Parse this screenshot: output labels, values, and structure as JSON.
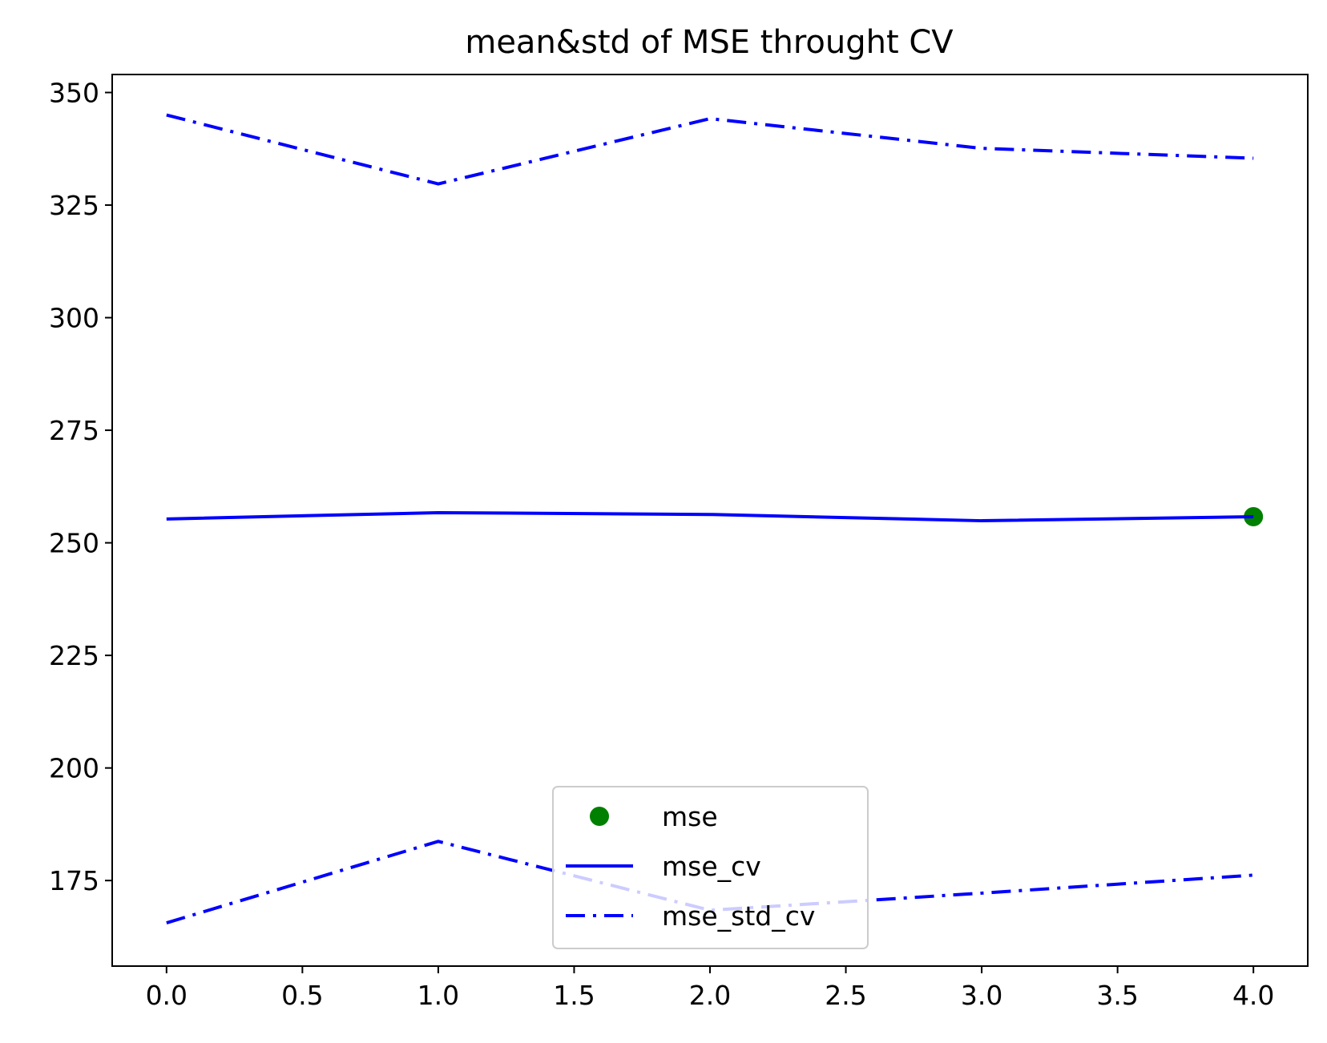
{
  "chart_data": {
    "type": "line",
    "title": "mean&std of MSE throught CV",
    "xlabel": "",
    "ylabel": "",
    "x": [
      0,
      1,
      2,
      3,
      4
    ],
    "xlim": [
      -0.2,
      4.2
    ],
    "ylim": [
      156,
      354
    ],
    "xticks": [
      0.0,
      0.5,
      1.0,
      1.5,
      2.0,
      2.5,
      3.0,
      3.5,
      4.0
    ],
    "xtick_labels": [
      "0.0",
      "0.5",
      "1.0",
      "1.5",
      "2.0",
      "2.5",
      "3.0",
      "3.5",
      "4.0"
    ],
    "yticks": [
      175,
      200,
      225,
      250,
      275,
      300,
      325,
      350
    ],
    "ytick_labels": [
      "175",
      "200",
      "225",
      "250",
      "275",
      "300",
      "325",
      "350"
    ],
    "grid": false,
    "legend_position": "lower center",
    "series": [
      {
        "name": "mse",
        "style": "marker",
        "color": "#008000",
        "points": [
          {
            "x": 4,
            "y": 255.8
          }
        ]
      },
      {
        "name": "mse_cv",
        "style": "solid",
        "color": "#0000ff",
        "values": [
          255.3,
          256.7,
          256.3,
          254.9,
          255.8
        ]
      },
      {
        "name": "mse_std_cv",
        "style": "dashdot",
        "color": "#0000ff",
        "values": [
          345.0,
          329.7,
          344.2,
          337.6,
          335.4
        ]
      },
      {
        "name": "",
        "style": "dashdot",
        "color": "#0000ff",
        "values": [
          165.6,
          183.7,
          168.4,
          172.2,
          176.2
        ]
      }
    ],
    "legend": [
      {
        "label": "mse",
        "style": "marker",
        "color": "#008000"
      },
      {
        "label": "mse_cv",
        "style": "solid",
        "color": "#0000ff"
      },
      {
        "label": "mse_std_cv",
        "style": "dashdot",
        "color": "#0000ff"
      }
    ]
  }
}
